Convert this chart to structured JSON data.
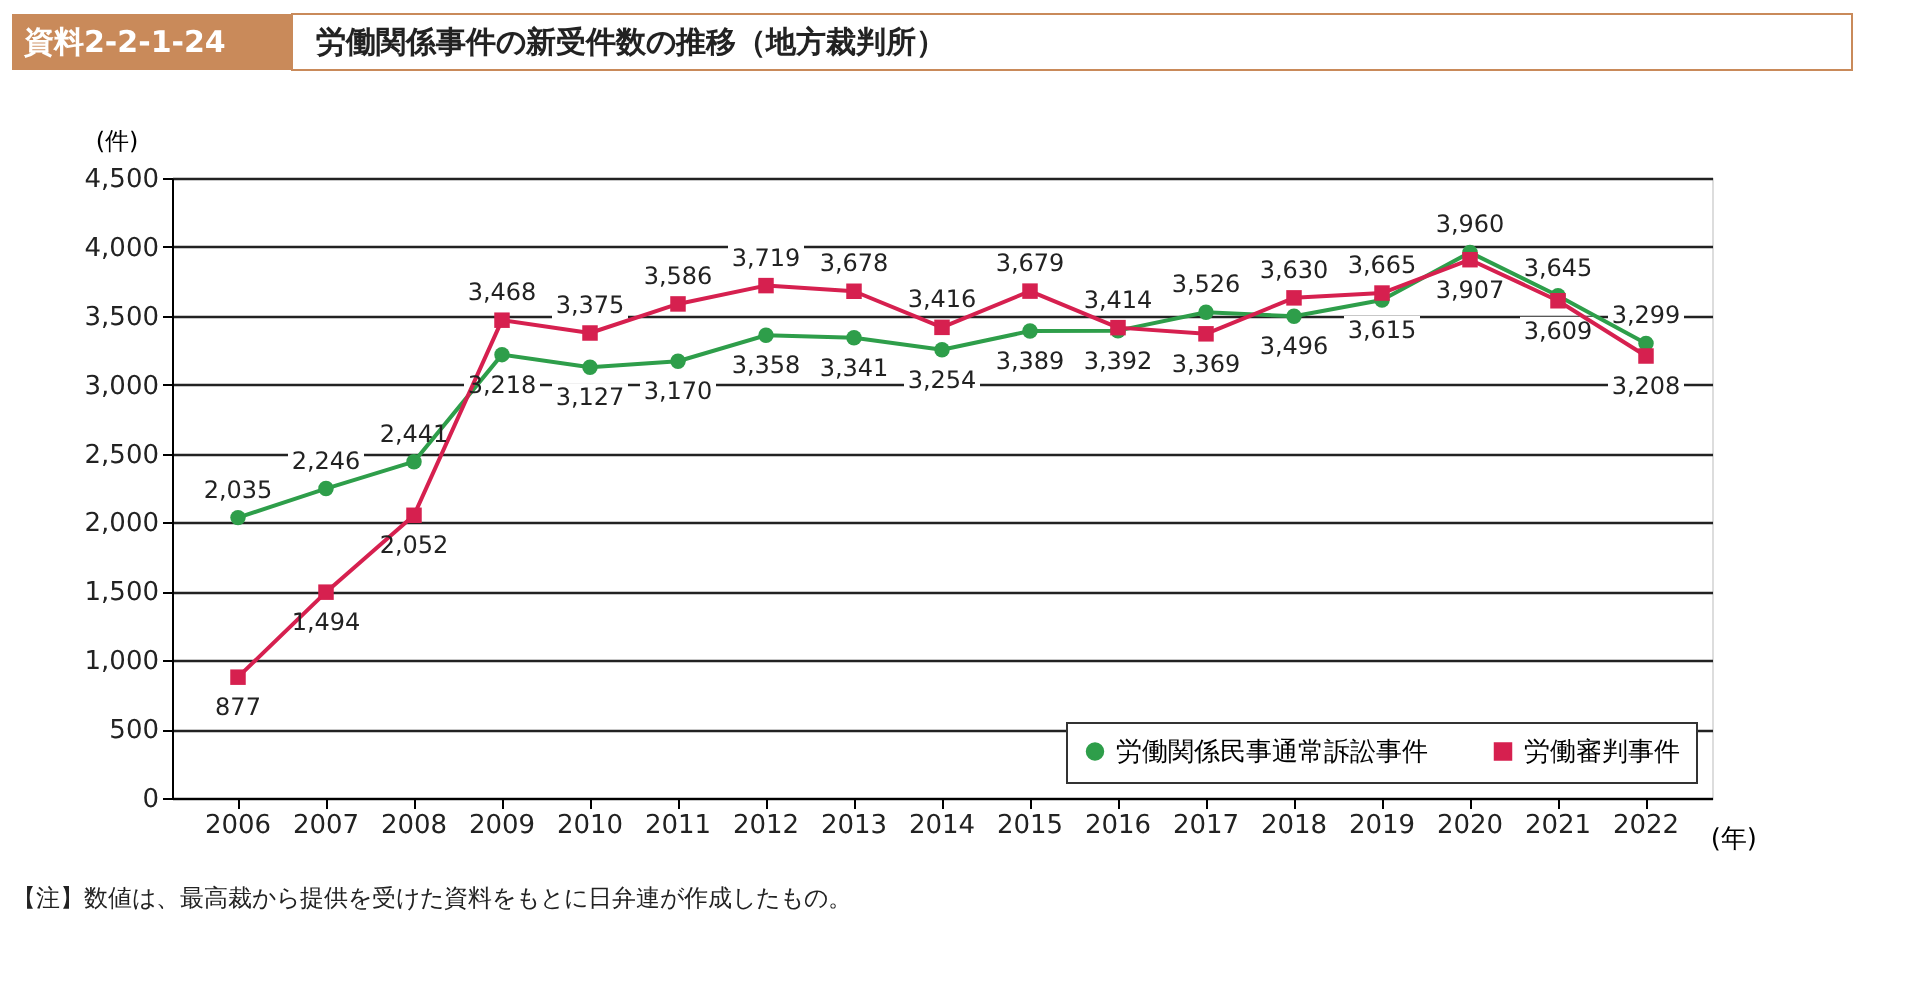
{
  "chart_data": {
    "type": "line",
    "title": "労働関係事件の新受件数の推移（地方裁判所）",
    "subtitle": "資料2-2-1-24",
    "ylabel": "(件)",
    "xlabel": "(年)",
    "categories": [
      "2006",
      "2007",
      "2008",
      "2009",
      "2010",
      "2011",
      "2012",
      "2013",
      "2014",
      "2015",
      "2016",
      "2017",
      "2018",
      "2019",
      "2020",
      "2021",
      "2022"
    ],
    "series": [
      {
        "name": "労働関係民事通常訴訟事件",
        "color": "#2e9e4a",
        "marker": "circle",
        "values": [
          2035,
          2246,
          2441,
          3218,
          3127,
          3170,
          3358,
          3341,
          3254,
          3389,
          3392,
          3526,
          3496,
          3615,
          3960,
          3645,
          3299
        ],
        "value_labels": [
          "2,035",
          "2,246",
          "2,441",
          "3,218",
          "3,127",
          "3,170",
          "3,358",
          "3,341",
          "3,254",
          "3,389",
          "3,392",
          "3,526",
          "3,496",
          "3,615",
          "3,960",
          "3,645",
          "3,299"
        ]
      },
      {
        "name": "労働審判事件",
        "color": "#d6204f",
        "marker": "square",
        "values": [
          877,
          1494,
          2052,
          3468,
          3375,
          3586,
          3719,
          3678,
          3416,
          3679,
          3414,
          3369,
          3630,
          3665,
          3907,
          3609,
          3208
        ],
        "value_labels": [
          "877",
          "1,494",
          "2,052",
          "3,468",
          "3,375",
          "3,586",
          "3,719",
          "3,678",
          "3,416",
          "3,679",
          "3,414",
          "3,369",
          "3,630",
          "3,665",
          "3,907",
          "3,609",
          "3,208"
        ]
      }
    ],
    "ylim": [
      0,
      4500
    ],
    "yticks": [
      0,
      500,
      {
        "value": 1000,
        "label": "1,000"
      },
      {
        "value": 1500,
        "label": "1,500"
      },
      {
        "value": 2000,
        "label": "2,000"
      },
      {
        "value": 2500,
        "label": "2,500"
      },
      {
        "value": 3000,
        "label": "3,000"
      },
      {
        "value": 3500,
        "label": "3,500"
      },
      {
        "value": 4000,
        "label": "4,000"
      },
      {
        "value": 4500,
        "label": "4,500"
      }
    ],
    "grid": "y",
    "legend": "bottom right",
    "line_style": "solid",
    "annotations": [
      "【注】数値は、最高裁から提供を受けた資料をもとに日弁連が作成したもの。"
    ]
  }
}
